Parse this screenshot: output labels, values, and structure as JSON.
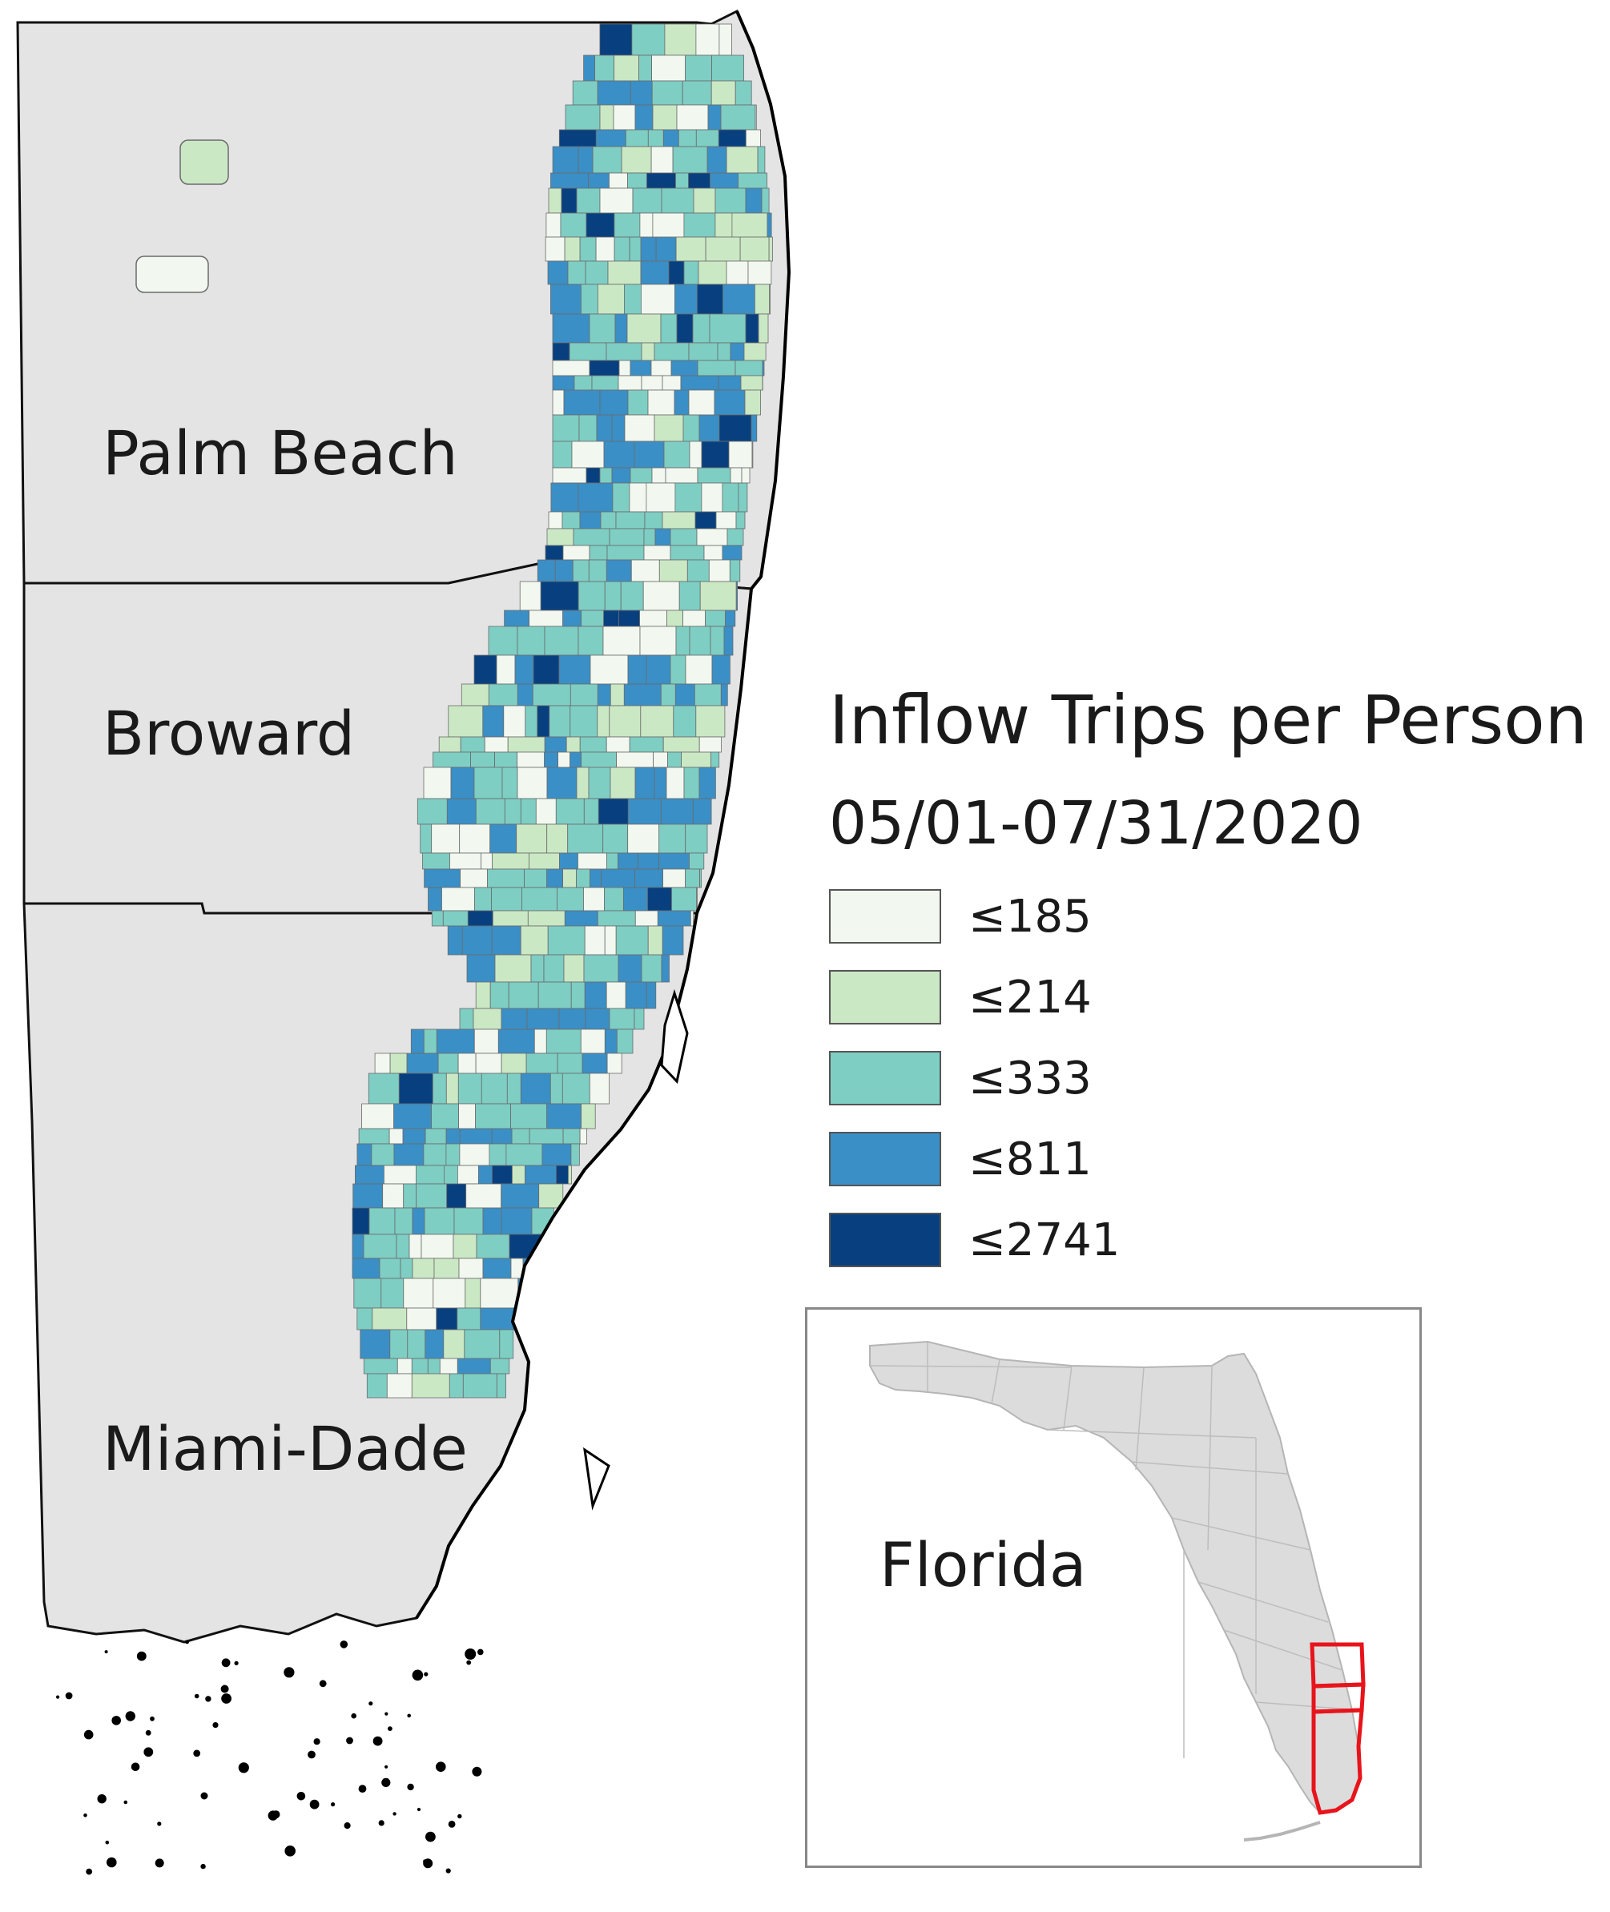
{
  "map": {
    "counties": [
      {
        "name": "Palm Beach"
      },
      {
        "name": "Broward"
      },
      {
        "name": "Miami-Dade"
      }
    ],
    "colors": {
      "county_fill": "#e4e4e4",
      "county_stroke": "#111111",
      "tract_stroke": "#6b6b6b"
    }
  },
  "legend": {
    "title": "Inflow Trips per Person",
    "subtitle": "05/01-07/31/2020",
    "classes": [
      {
        "label": "≤185",
        "max": 185,
        "color": "#f2f8ef"
      },
      {
        "label": "≤214",
        "max": 214,
        "color": "#cbe8c4"
      },
      {
        "label": "≤333",
        "max": 333,
        "color": "#7ecec4"
      },
      {
        "label": "≤811",
        "max": 811,
        "color": "#3a8fc6"
      },
      {
        "label": "≤2741",
        "max": 2741,
        "color": "#08407f"
      }
    ]
  },
  "inset": {
    "label": "Florida",
    "state_fill": "#dcdcdc",
    "highlight_color": "#e8141b"
  }
}
